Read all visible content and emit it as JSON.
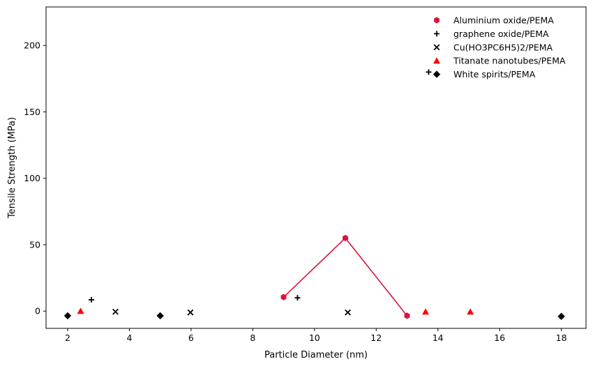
{
  "chart_data": {
    "type": "scatter",
    "xlabel": "Particle Diameter (nm)",
    "ylabel": "Tensile Strength (MPa)",
    "xlim": [
      1.3,
      18.8
    ],
    "ylim": [
      -13,
      229
    ],
    "xticks": [
      2,
      4,
      6,
      8,
      10,
      12,
      14,
      16,
      18
    ],
    "yticks": [
      0,
      50,
      100,
      150,
      200
    ],
    "grid": false,
    "legend_position": "top-right",
    "series": [
      {
        "name": "Aluminium oxide/PEMA",
        "marker": "hexagon",
        "color": "#dc143c",
        "line": true,
        "x": [
          9.0,
          11.0,
          13.0
        ],
        "y": [
          10.5,
          55.0,
          -3.5
        ]
      },
      {
        "name": "graphene oxide/PEMA",
        "marker": "plus",
        "color": "#000000",
        "line": false,
        "x": [
          2.77,
          9.45,
          13.7
        ],
        "y": [
          8.5,
          10.0,
          180.0
        ]
      },
      {
        "name": "Cu(HO3PC6H5)2/PEMA",
        "marker": "x",
        "color": "#000000",
        "line": false,
        "x": [
          3.55,
          5.98,
          11.08
        ],
        "y": [
          -0.5,
          -1.0,
          -1.0
        ]
      },
      {
        "name": "Titanate nanotubes/PEMA",
        "marker": "triangle",
        "color": "#ff0000",
        "line": false,
        "x": [
          2.42,
          13.6,
          15.05
        ],
        "y": [
          0.0,
          -0.5,
          -0.5
        ]
      },
      {
        "name": "White spirits/PEMA",
        "marker": "diamond",
        "color": "#000000",
        "line": false,
        "x": [
          2.0,
          5.0,
          18.0
        ],
        "y": [
          -3.5,
          -3.5,
          -4.0
        ]
      }
    ]
  }
}
